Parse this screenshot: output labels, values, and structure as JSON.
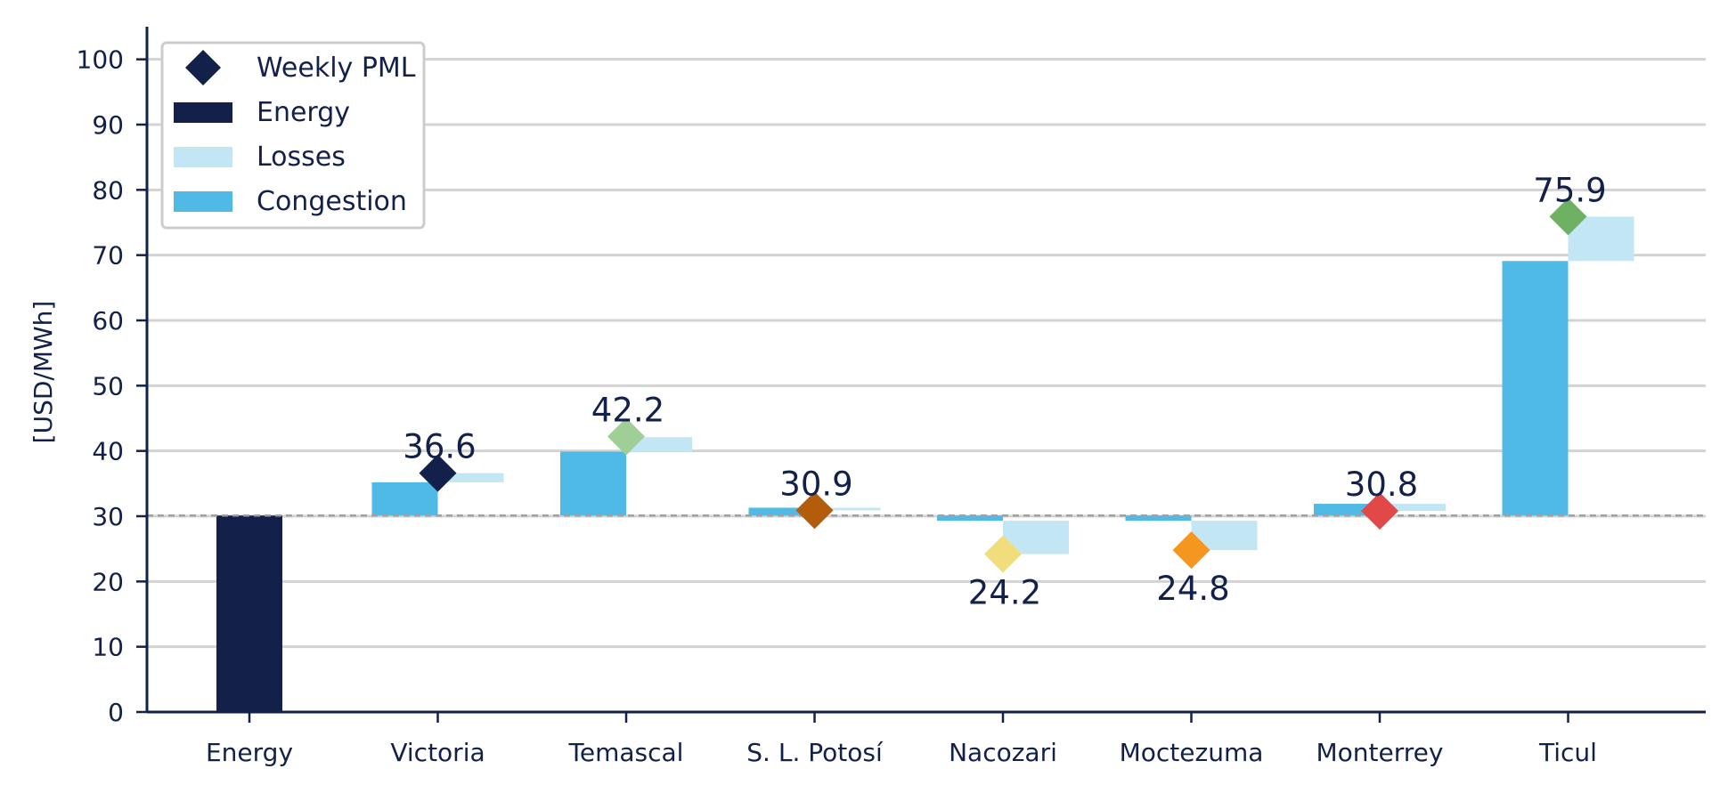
{
  "chart_data": {
    "type": "bar",
    "subtype": "waterfall",
    "categories": [
      "Energy",
      "Victoria",
      "Temascal",
      "S. L. Potosí",
      "Nacozari",
      "Moctezuma",
      "Monterrey",
      "Ticul"
    ],
    "energy": 30.1,
    "congestion": [
      null,
      5.1,
      9.8,
      1.2,
      -0.8,
      -0.8,
      1.8,
      39.0
    ],
    "losses": [
      null,
      1.4,
      2.2,
      -0.4,
      -5.1,
      -4.5,
      -1.1,
      6.8
    ],
    "pml": [
      null,
      36.6,
      42.2,
      30.9,
      24.2,
      24.8,
      30.8,
      75.9
    ],
    "pml_labels": [
      "",
      "36.6",
      "42.2",
      "30.9",
      "24.2",
      "24.8",
      "30.8",
      "75.9"
    ],
    "marker_colors": [
      null,
      "#13214a",
      "#9fcf96",
      "#b35c0c",
      "#f2dd7c",
      "#f5961f",
      "#e14848",
      "#6fb162"
    ],
    "ylabel": "[USD/MWh]",
    "ylim": [
      0,
      105
    ],
    "yticks": [
      0,
      10,
      20,
      30,
      40,
      50,
      60,
      70,
      80,
      90,
      100
    ],
    "grid": true,
    "reference_line": 30.1,
    "legend": {
      "position": "top-left",
      "entries": [
        {
          "label": "Weekly PML",
          "shape": "diamond",
          "color": "#13214a"
        },
        {
          "label": "Energy",
          "shape": "bar",
          "color": "#13214a"
        },
        {
          "label": "Losses",
          "shape": "bar",
          "color": "#c3e6f5"
        },
        {
          "label": "Congestion",
          "shape": "bar",
          "color": "#4fbae6"
        }
      ]
    },
    "colors": {
      "energy": "#13214a",
      "losses": "#c3e6f5",
      "congestion": "#4fbae6",
      "axis": "#13214a",
      "grid": "#d3d3d3",
      "reference": "#a0a0a0"
    }
  }
}
